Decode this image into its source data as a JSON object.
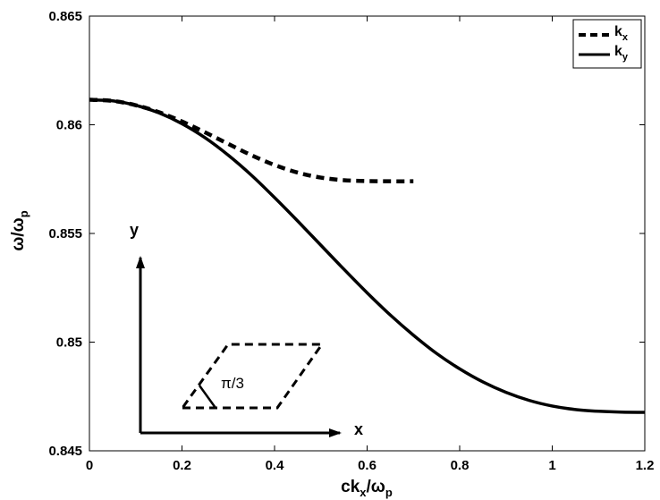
{
  "chart_data": {
    "type": "line",
    "xlabel": {
      "main": "ck",
      "sub": "x",
      "tail": "/ω",
      "sub2": "p"
    },
    "ylabel": {
      "main": "ω/ω",
      "sub": "p"
    },
    "xlim": [
      0,
      1.2
    ],
    "ylim": [
      0.845,
      0.865
    ],
    "xticks": [
      0,
      0.2,
      0.4,
      0.6,
      0.8,
      1,
      1.2
    ],
    "xtick_labels": [
      "0",
      "0.2",
      "0.4",
      "0.6",
      "0.8",
      "1",
      "1.2"
    ],
    "yticks": [
      0.845,
      0.85,
      0.855,
      0.86,
      0.865
    ],
    "ytick_labels": [
      "0.845",
      "0.85",
      "0.855",
      "0.86",
      "0.865"
    ],
    "grid": false,
    "legend_position": "top-right",
    "series": [
      {
        "name": "k_x",
        "label_main": "k",
        "label_sub": "x",
        "style": "dashed",
        "x": [
          0,
          0.05,
          0.1,
          0.15,
          0.2,
          0.25,
          0.3,
          0.35,
          0.4,
          0.45,
          0.5,
          0.55,
          0.6,
          0.65,
          0.7
        ],
        "y": [
          0.86115,
          0.8611,
          0.8609,
          0.86058,
          0.86015,
          0.85965,
          0.85912,
          0.8586,
          0.85815,
          0.8578,
          0.85757,
          0.85745,
          0.85741,
          0.8574,
          0.8574
        ]
      },
      {
        "name": "k_y",
        "label_main": "k",
        "label_sub": "y",
        "style": "solid",
        "x": [
          0,
          0.05,
          0.1,
          0.15,
          0.2,
          0.25,
          0.3,
          0.35,
          0.4,
          0.45,
          0.5,
          0.55,
          0.6,
          0.65,
          0.7,
          0.75,
          0.8,
          0.85,
          0.9,
          0.95,
          1.0,
          1.05,
          1.1,
          1.15,
          1.2
        ],
        "y": [
          0.86115,
          0.8611,
          0.8609,
          0.86055,
          0.86005,
          0.8594,
          0.8586,
          0.85768,
          0.85665,
          0.85557,
          0.85446,
          0.85335,
          0.85227,
          0.85125,
          0.85032,
          0.84948,
          0.84877,
          0.84817,
          0.84769,
          0.84732,
          0.84706,
          0.8469,
          0.84682,
          0.84678,
          0.84677
        ]
      }
    ],
    "inset": {
      "x_axis_label": "x",
      "y_axis_label": "y",
      "angle_label": "π/3"
    }
  }
}
